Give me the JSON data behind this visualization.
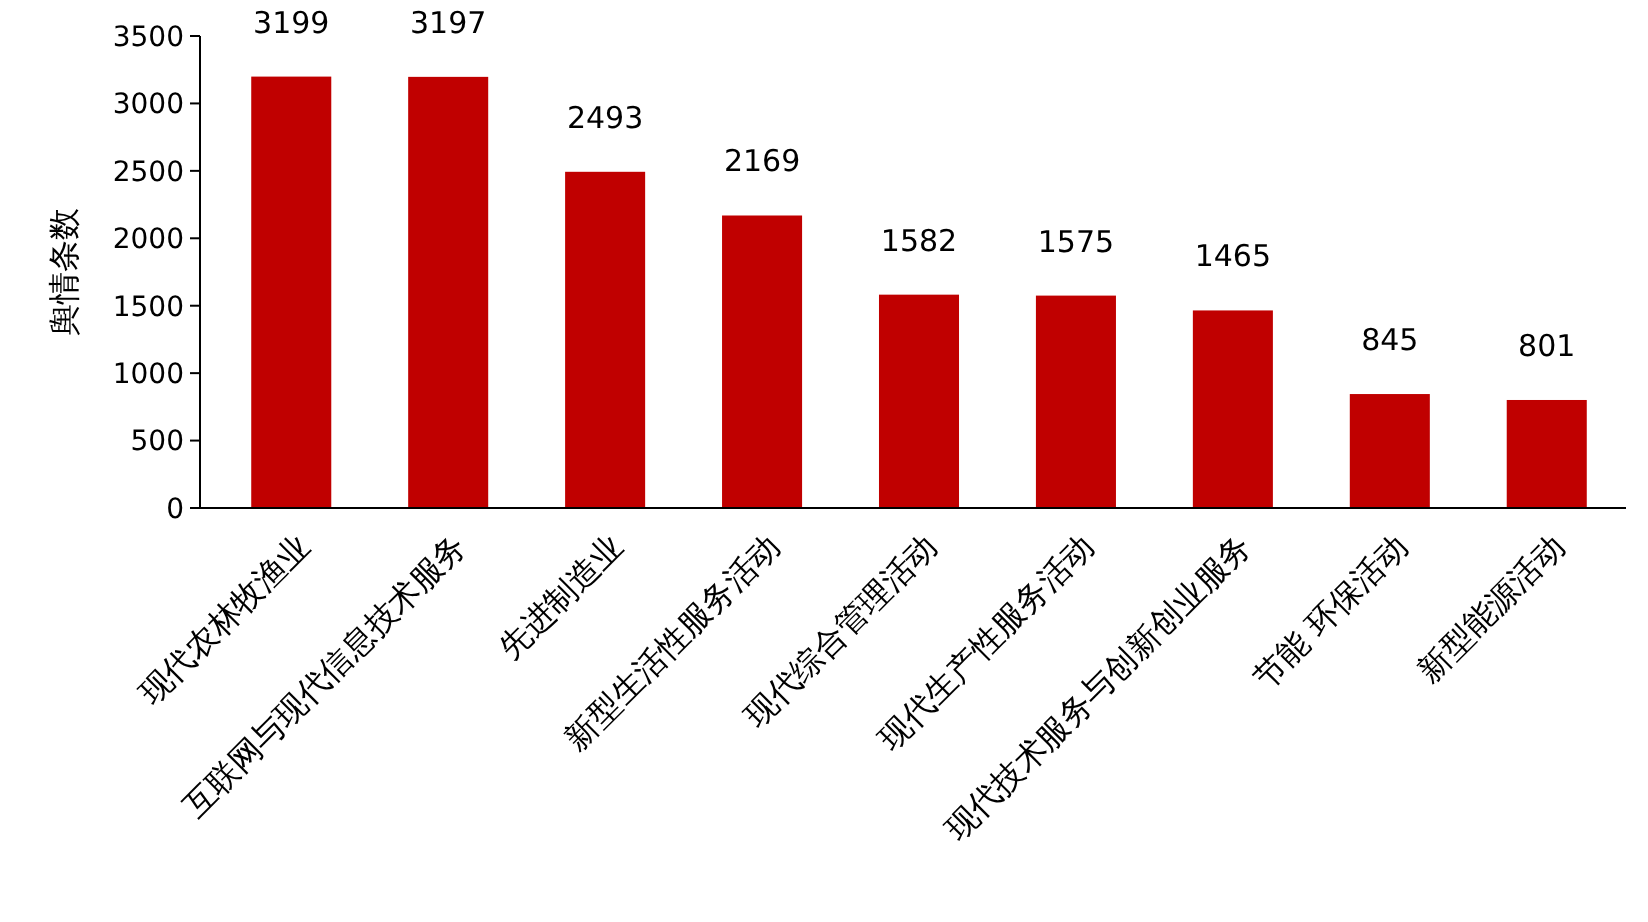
{
  "chart_data": {
    "type": "bar",
    "ylabel": "舆情条数",
    "categories": [
      "现代农林牧渔业",
      "互联网与现代信息技术服务",
      "先进制造业",
      "新型生活性服务活动",
      "现代综合管理活动",
      "现代生产性服务活动",
      "现代技术服务与创新创业服务",
      "节能 环保活动",
      "新型能源活动"
    ],
    "values": [
      3199,
      3197,
      2493,
      2169,
      1582,
      1575,
      1465,
      845,
      801
    ],
    "color": "#c00000",
    "ylim": [
      0,
      3500
    ],
    "yticks": [
      0,
      500,
      1000,
      1500,
      2000,
      2500,
      3000,
      3500
    ],
    "data_labels": true
  }
}
